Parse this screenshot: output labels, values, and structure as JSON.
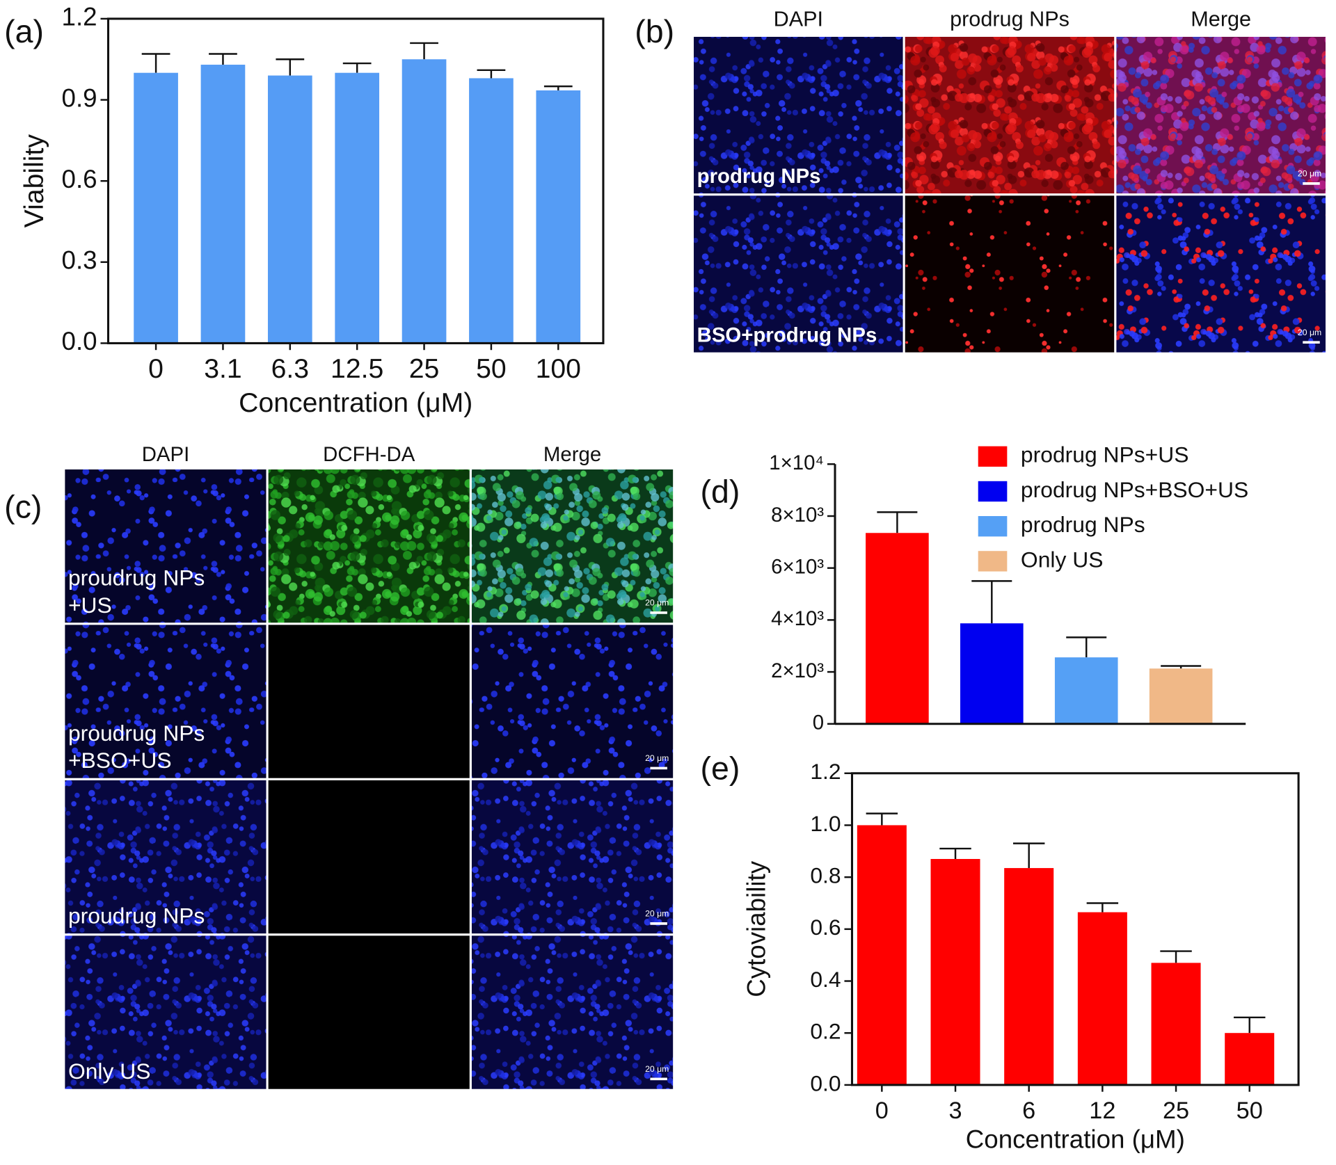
{
  "chart_data": [
    {
      "type": "bar",
      "panel_label": "(a)",
      "x_label": "Concentration (μM)",
      "y_label": "Viability",
      "categories": [
        "0",
        "3.1",
        "6.3",
        "12.5",
        "25",
        "50",
        "100"
      ],
      "values": [
        1.0,
        1.03,
        0.99,
        1.0,
        1.05,
        0.98,
        0.935
      ],
      "errors": [
        0.07,
        0.04,
        0.06,
        0.035,
        0.06,
        0.03,
        0.015
      ],
      "color": "#559cf5",
      "ylim": [
        0,
        1.2
      ],
      "yticks": [
        {
          "value": 0,
          "label": "0.0"
        },
        {
          "value": 0.3,
          "label": "0.3"
        },
        {
          "value": 0.6,
          "label": "0.6"
        },
        {
          "value": 0.9,
          "label": "0.9"
        },
        {
          "value": 1.2,
          "label": "1.2"
        }
      ]
    },
    {
      "type": "bar",
      "panel_label": "(d)",
      "legend": "upper right",
      "series": [
        {
          "name": "prodrug NPs+US",
          "color": "#ff0000",
          "values": [
            7350
          ],
          "errors": [
            800
          ]
        },
        {
          "name": "prodrug NPs+BSO+US",
          "color": "#0000f0",
          "values": [
            3870
          ],
          "errors": [
            1630
          ]
        },
        {
          "name": "prodrug NPs",
          "color": "#55a0f5",
          "values": [
            2560
          ],
          "errors": [
            770
          ]
        },
        {
          "name": "Only US",
          "color": "#f0b887",
          "values": [
            2130
          ],
          "errors": [
            100
          ]
        }
      ],
      "ylim": [
        0,
        10000
      ],
      "yticks": [
        0,
        {
          "value": 2000,
          "label": "2×10³"
        },
        {
          "value": 4000,
          "label": "4×10³"
        },
        {
          "value": 6000,
          "label": "6×10³"
        },
        {
          "value": 8000,
          "label": "8×10³"
        },
        {
          "value": 10000,
          "label": "1×10⁴"
        }
      ]
    },
    {
      "type": "bar",
      "panel_label": "(e)",
      "x_label": "Concentration (μM)",
      "y_label": "Cytoviability",
      "categories": [
        "0",
        "3",
        "6",
        "12",
        "25",
        "50"
      ],
      "values": [
        1.0,
        0.87,
        0.835,
        0.665,
        0.47,
        0.2
      ],
      "errors": [
        0.045,
        0.04,
        0.095,
        0.035,
        0.045,
        0.06
      ],
      "color": "#ff0000",
      "ylim": [
        0,
        1.2
      ],
      "yticks": [
        {
          "value": 0,
          "label": "0.0"
        },
        {
          "value": 0.2,
          "label": "0.2"
        },
        {
          "value": 0.4,
          "label": "0.4"
        },
        {
          "value": 0.6,
          "label": "0.6"
        },
        {
          "value": 0.8,
          "label": "0.8"
        },
        {
          "value": 1.0,
          "label": "1.0"
        },
        {
          "value": 1.2,
          "label": "1.2"
        }
      ]
    }
  ],
  "image_panels": [
    {
      "panel_label": "(b)",
      "columns": [
        "DAPI",
        "prodrug NPs",
        "Merge"
      ],
      "rows": [
        {
          "label_lines": [
            "prodrug NPs"
          ],
          "scale_bar": "20 μm"
        },
        {
          "label_lines": [
            "BSO+prodrug NPs"
          ],
          "scale_bar": "20 μm"
        }
      ]
    },
    {
      "panel_label": "(c)",
      "columns": [
        "DAPI",
        "DCFH-DA",
        "Merge"
      ],
      "rows": [
        {
          "label_lines": [
            "proudrug NPs",
            "+US"
          ],
          "scale_bar": "20 μm"
        },
        {
          "label_lines": [
            "proudrug NPs",
            "+BSO+US"
          ],
          "scale_bar": "20 μm"
        },
        {
          "label_lines": [
            "proudrug NPs"
          ],
          "scale_bar": "20 μm"
        },
        {
          "label_lines": [
            "Only US"
          ],
          "scale_bar": "20 μm"
        }
      ]
    }
  ]
}
